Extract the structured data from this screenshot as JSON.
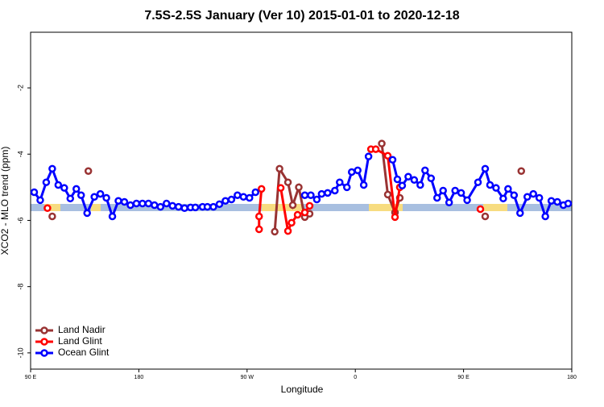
{
  "chart_data": {
    "type": "line",
    "title": "7.5S-2.5S January (Ver 10)   2015-01-01 to 2020-12-18",
    "x_label": "Longitude",
    "y_label": "XCO2 - MLO trend (ppm)",
    "xlim": [
      90,
      540
    ],
    "ylim": [
      -10.49,
      -0.32
    ],
    "xticks": [
      {
        "value": 90,
        "label": "90 E"
      },
      180,
      {
        "value": 270,
        "label": "90 W"
      },
      {
        "value": 360,
        "label": "0"
      },
      {
        "value": 450,
        "label": "90 E"
      },
      {
        "value": 540,
        "label": "180"
      }
    ],
    "yticks": [
      -2,
      -4,
      -6,
      -8,
      -10
    ],
    "legend": "lower left",
    "series": [
      {
        "name": "Land Nadir",
        "color": "#993333",
        "x": [
          108,
          null,
          138,
          null,
          293,
          297,
          304,
          308,
          313,
          318,
          322,
          null,
          382,
          387,
          393,
          397,
          null,
          468,
          null,
          498
        ],
        "values": [
          -5.88,
          null,
          -4.51,
          null,
          -6.34,
          -4.44,
          -4.85,
          -5.54,
          -5.0,
          -5.9,
          -5.8,
          null,
          -3.68,
          -5.22,
          -5.76,
          -5.32,
          null,
          -5.88,
          null,
          -4.51
        ]
      },
      {
        "name": "Land Glint",
        "color": "#ff0000",
        "x": [
          104,
          null,
          280,
          280,
          282,
          null,
          298,
          304,
          307,
          312,
          318,
          322,
          null,
          373,
          377,
          387,
          393,
          397,
          null,
          464
        ],
        "values": [
          -5.63,
          null,
          -6.27,
          -5.88,
          -5.05,
          null,
          -5.02,
          -6.32,
          -6.07,
          -5.83,
          -5.76,
          -5.56,
          null,
          -3.85,
          -3.85,
          -4.05,
          -5.9,
          -5.0,
          null,
          -5.66
        ]
      },
      {
        "name": "Ocean Glint",
        "color": "#0000ff",
        "x": [
          93,
          98,
          103,
          108,
          113,
          118,
          123,
          128,
          132,
          137,
          143,
          148,
          153,
          158,
          163,
          168,
          173,
          178,
          183,
          188,
          193,
          198,
          203,
          208,
          213,
          218,
          223,
          227,
          233,
          237,
          242,
          247,
          252,
          257,
          262,
          267,
          272,
          277,
          null,
          318,
          323,
          328,
          332,
          337,
          343,
          347,
          353,
          357,
          362,
          367,
          371,
          null,
          391,
          395,
          399,
          404,
          409,
          414,
          418,
          423,
          428,
          433,
          438,
          443,
          448,
          453,
          462,
          468,
          472,
          477,
          483,
          487,
          492,
          497,
          503,
          508,
          513,
          518,
          523,
          528,
          533,
          537
        ],
        "values": [
          -5.15,
          -5.39,
          -4.85,
          -4.44,
          -4.93,
          -5.02,
          -5.34,
          -5.05,
          -5.24,
          -5.78,
          -5.29,
          -5.2,
          -5.32,
          -5.88,
          -5.41,
          -5.44,
          -5.54,
          -5.49,
          -5.49,
          -5.49,
          -5.54,
          -5.59,
          -5.49,
          -5.56,
          -5.59,
          -5.63,
          -5.61,
          -5.61,
          -5.59,
          -5.59,
          -5.59,
          -5.51,
          -5.41,
          -5.37,
          -5.24,
          -5.29,
          -5.32,
          -5.15,
          null,
          -5.24,
          -5.24,
          -5.37,
          -5.2,
          -5.17,
          -5.1,
          -4.85,
          -5.0,
          -4.54,
          -4.49,
          -4.93,
          -4.07,
          null,
          -4.17,
          -4.76,
          -4.95,
          -4.68,
          -4.78,
          -4.93,
          -4.49,
          -4.73,
          -5.32,
          -5.1,
          -5.46,
          -5.1,
          -5.17,
          -5.39,
          -4.85,
          -4.44,
          -4.93,
          -5.02,
          -5.34,
          -5.05,
          -5.24,
          -5.78,
          -5.29,
          -5.2,
          -5.32,
          -5.88,
          -5.41,
          -5.44,
          -5.54,
          -5.49
        ]
      }
    ]
  }
}
